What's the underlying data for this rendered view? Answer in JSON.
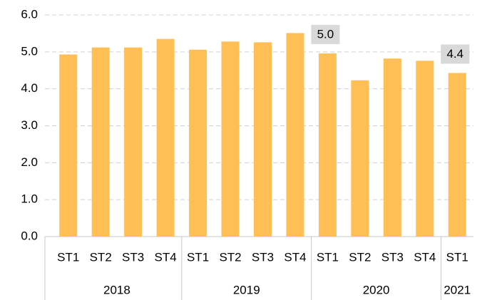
{
  "chart_data": {
    "type": "bar",
    "groups": [
      {
        "name": "2018",
        "categories": [
          "ST1",
          "ST2",
          "ST3",
          "ST4"
        ]
      },
      {
        "name": "2019",
        "categories": [
          "ST1",
          "ST2",
          "ST3",
          "ST4"
        ]
      },
      {
        "name": "2020",
        "categories": [
          "ST1",
          "ST2",
          "ST3",
          "ST4"
        ]
      },
      {
        "name": "2021",
        "categories": [
          "ST1"
        ]
      }
    ],
    "values": [
      4.93,
      5.12,
      5.12,
      5.35,
      5.06,
      5.28,
      5.26,
      5.51,
      4.96,
      4.23,
      4.82,
      4.76,
      4.43
    ],
    "value_labels": [
      null,
      null,
      null,
      null,
      null,
      null,
      null,
      null,
      "5.0",
      null,
      null,
      null,
      "4.4"
    ],
    "color": "#ffbf55",
    "ylim": [
      0,
      6
    ],
    "yticks": [
      {
        "value": 0,
        "label": "0.0"
      },
      {
        "value": 1,
        "label": "1.0"
      },
      {
        "value": 2,
        "label": "2.0"
      },
      {
        "value": 3,
        "label": "3.0"
      },
      {
        "value": 4,
        "label": "4.0"
      },
      {
        "value": 5,
        "label": "5.0"
      },
      {
        "value": 6,
        "label": "6.0"
      }
    ],
    "grid": true
  }
}
